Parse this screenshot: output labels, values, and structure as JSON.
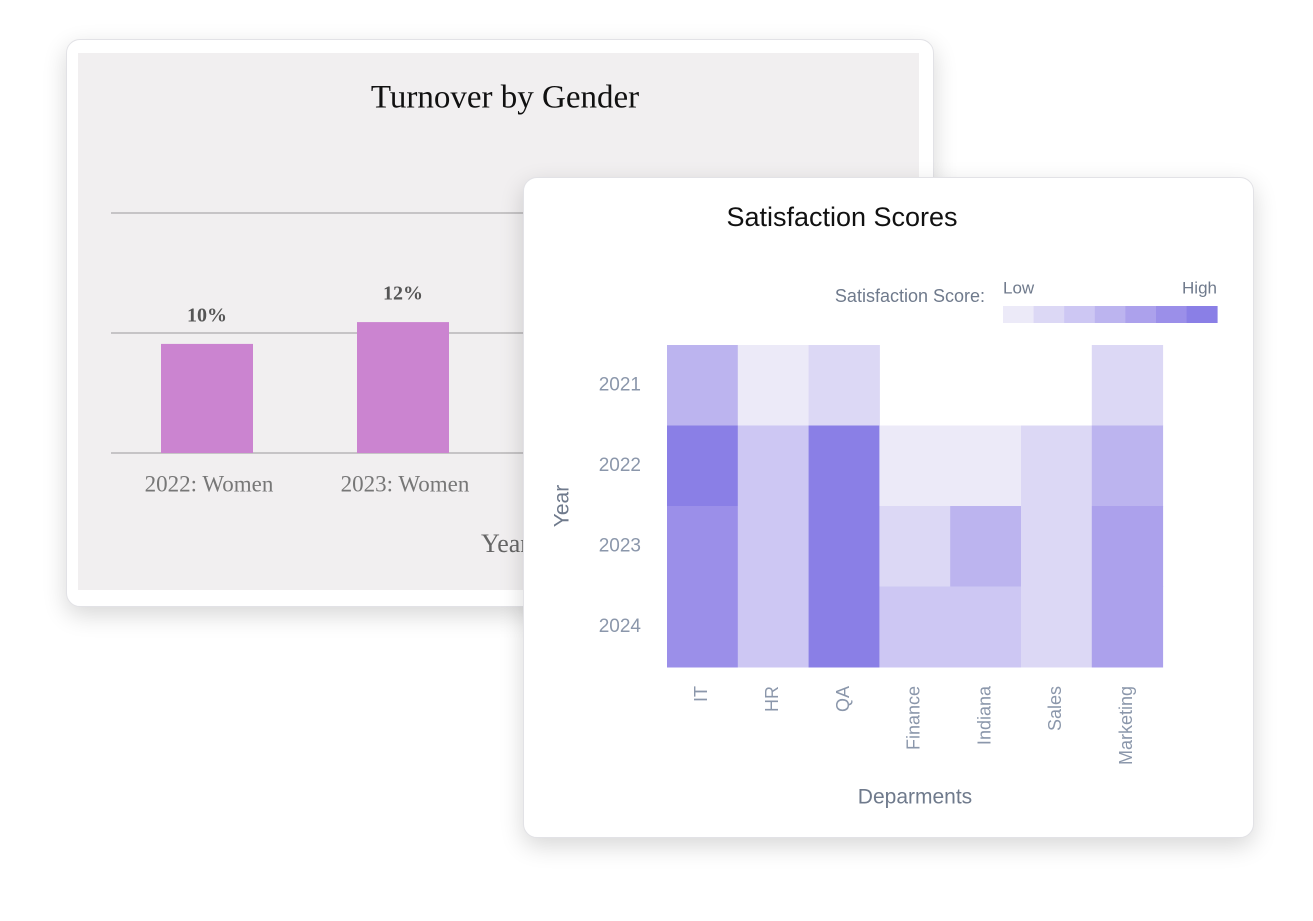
{
  "chart_data": [
    {
      "type": "bar",
      "title": "Turnover by Gender",
      "x_label": "Year",
      "categories": [
        "2022: Women",
        "2023: Women"
      ],
      "values": [
        10,
        12
      ],
      "value_labels": [
        "10%",
        "12%"
      ],
      "color": "#cb84d0",
      "ylim": [
        0,
        22
      ],
      "yticks": [
        0,
        11,
        22
      ],
      "grid": true
    },
    {
      "type": "heatmap",
      "title": "Satisfaction Scores",
      "x_label": "Deparments",
      "y_label": "Year",
      "legend_title": "Satisfaction Score:",
      "legend_low": "Low",
      "legend_high": "High",
      "categories": [
        "IT",
        "HR",
        "QA",
        "Finance",
        "Indiana",
        "Sales",
        "Marketing"
      ],
      "rows": [
        "2021",
        "2022",
        "2023",
        "2024"
      ],
      "values": [
        [
          4,
          1,
          2,
          null,
          null,
          null,
          2
        ],
        [
          7,
          3,
          7,
          1,
          1,
          2,
          4
        ],
        [
          6,
          3,
          7,
          2,
          4,
          2,
          5
        ],
        [
          6,
          3,
          7,
          3,
          3,
          2,
          5
        ]
      ],
      "zlim": [
        1,
        7
      ],
      "colors": [
        "#eceaf8",
        "#dcd8f5",
        "#cdc7f3",
        "#bcb4ef",
        "#aca1ec",
        "#9b8fe9",
        "#8a7fe6"
      ]
    }
  ]
}
